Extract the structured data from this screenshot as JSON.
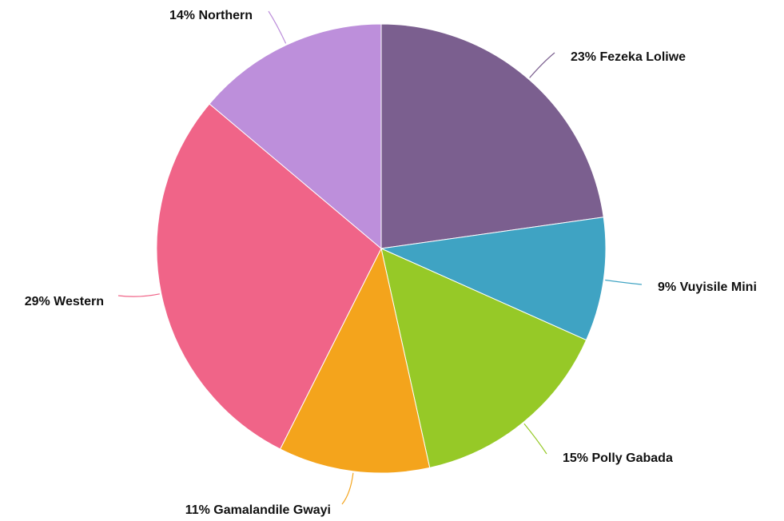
{
  "chart_data": {
    "type": "pie",
    "slices": [
      {
        "name": "Fezeka Loliwe",
        "value": 23,
        "label": "23% Fezeka Loliwe",
        "color": "#7b5f8f"
      },
      {
        "name": "Vuyisile Mini",
        "value": 9,
        "label": "9% Vuyisile Mini",
        "color": "#3fa3c3"
      },
      {
        "name": "Polly Gabada",
        "value": 15,
        "label": "15% Polly Gabada",
        "color": "#96c927"
      },
      {
        "name": "Gamalandile Gwayi",
        "value": 11,
        "label": "11% Gamalandile Gwayi",
        "color": "#f4a41c"
      },
      {
        "name": "Western",
        "value": 29,
        "label": "29% Western",
        "color": "#f06488"
      },
      {
        "name": "Northern",
        "value": 14,
        "label": "14% Northern",
        "color": "#bd8fdb"
      }
    ]
  }
}
